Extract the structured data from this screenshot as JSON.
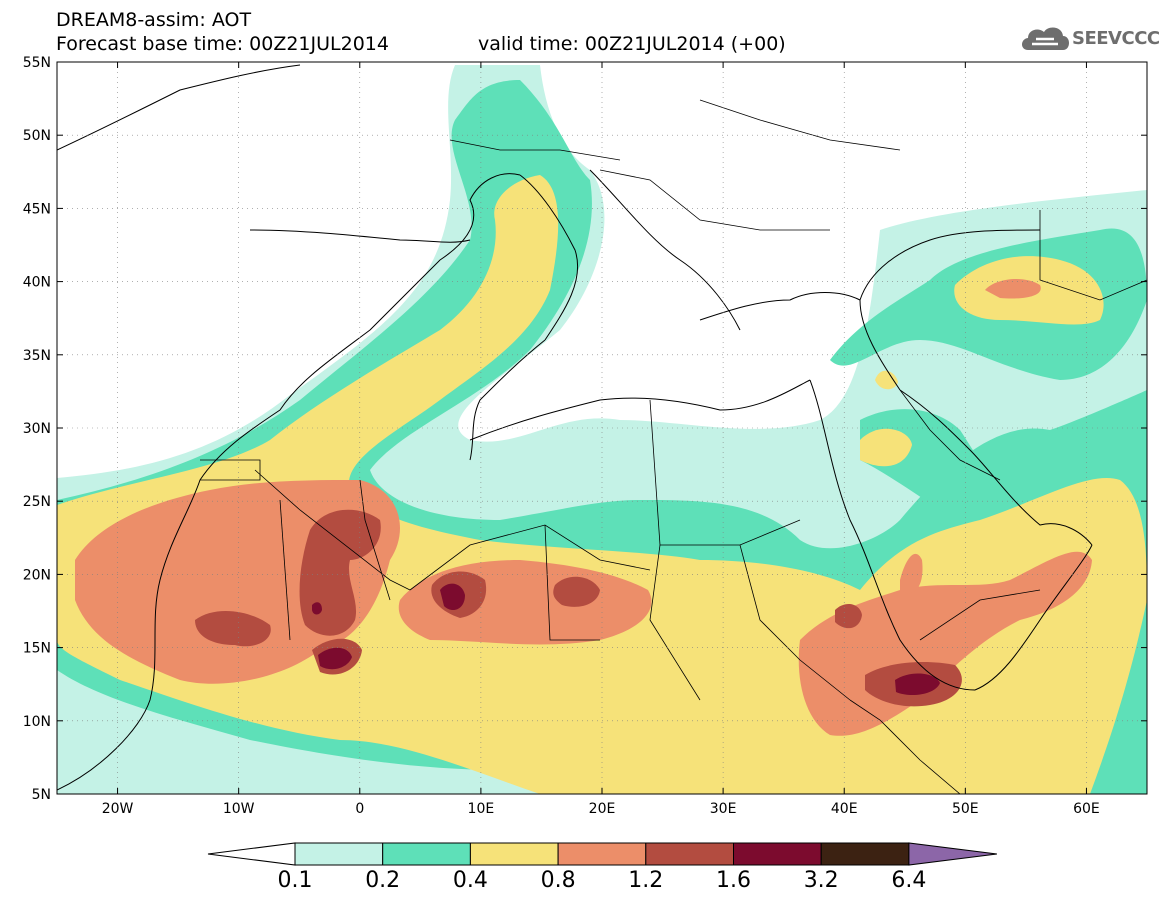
{
  "header": {
    "title_line1": "DREAM8-assim: AOT",
    "title_line2": "Forecast base time: 00Z21JUL2014",
    "valid_time": "valid time: 00Z21JUL2014 (+00)"
  },
  "logo": {
    "text": "SEEVCCC",
    "icon": "cloud-icon"
  },
  "axes": {
    "lat_labels": [
      "55N",
      "50N",
      "45N",
      "40N",
      "35N",
      "30N",
      "25N",
      "20N",
      "15N",
      "10N",
      "5N"
    ],
    "lon_labels": [
      "20W",
      "10W",
      "0",
      "10E",
      "20E",
      "30E",
      "40E",
      "50E",
      "60E"
    ]
  },
  "colorbar": {
    "labels": [
      "0.1",
      "0.2",
      "0.4",
      "0.8",
      "1.2",
      "1.6",
      "3.2",
      "6.4"
    ],
    "colors": [
      "#ffffff",
      "#c4f2e6",
      "#5ee0b8",
      "#f6e279",
      "#ec8e69",
      "#b34c40",
      "#7c0b2e",
      "#3c2212",
      "#8c66a8"
    ]
  },
  "colors": {
    "c1": "#c4f2e6",
    "c2": "#5ee0b8",
    "c3": "#f6e279",
    "c4": "#ec8e69",
    "c5": "#b34c40",
    "c6": "#7c0b2e"
  }
}
